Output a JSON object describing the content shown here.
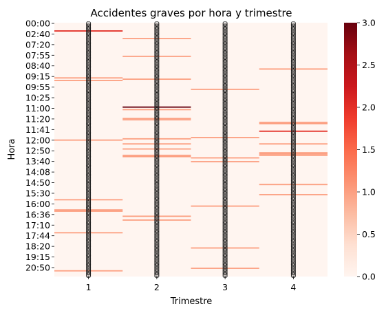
{
  "chart_data": {
    "type": "heatmap",
    "title": "Accidentes graves por hora y trimestre",
    "xlabel": "Trimestre",
    "ylabel": "Hora",
    "x_categories": [
      "1",
      "2",
      "3",
      "4"
    ],
    "y_tick_labels": [
      "00:00",
      "02:40",
      "07:20",
      "07:55",
      "08:40",
      "09:15",
      "09:55",
      "10:25",
      "11:00",
      "11:20",
      "11:41",
      "12:00",
      "12:50",
      "13:40",
      "14:08",
      "14:50",
      "15:30",
      "16:00",
      "16:36",
      "17:10",
      "17:44",
      "18:20",
      "19:15",
      "20:50"
    ],
    "value_range": [
      0,
      3
    ],
    "colorbar_ticks": [
      0.0,
      0.5,
      1.0,
      1.5,
      2.0,
      2.5,
      3.0
    ],
    "colormap": [
      "#fff5f0",
      "#fee0d2",
      "#fcbba1",
      "#fc9272",
      "#fb6a4a",
      "#ef3b2c",
      "#cb181d",
      "#a50f15",
      "#67000d"
    ],
    "row_count": 200,
    "cells": [
      {
        "trimestre": 1,
        "row": 6,
        "value": 2
      },
      {
        "trimestre": 1,
        "row": 43,
        "value": 1
      },
      {
        "trimestre": 1,
        "row": 45,
        "value": 1
      },
      {
        "trimestre": 1,
        "row": 92,
        "value": 1
      },
      {
        "trimestre": 1,
        "row": 139,
        "value": 1
      },
      {
        "trimestre": 1,
        "row": 147,
        "value": 1
      },
      {
        "trimestre": 1,
        "row": 148,
        "value": 1
      },
      {
        "trimestre": 1,
        "row": 165,
        "value": 1
      },
      {
        "trimestre": 1,
        "row": 195,
        "value": 1
      },
      {
        "trimestre": 2,
        "row": 12,
        "value": 1
      },
      {
        "trimestre": 2,
        "row": 26,
        "value": 1
      },
      {
        "trimestre": 2,
        "row": 44,
        "value": 1
      },
      {
        "trimestre": 2,
        "row": 66,
        "value": 3
      },
      {
        "trimestre": 2,
        "row": 68,
        "value": 1
      },
      {
        "trimestre": 2,
        "row": 75,
        "value": 1
      },
      {
        "trimestre": 2,
        "row": 76,
        "value": 1
      },
      {
        "trimestre": 2,
        "row": 91,
        "value": 1
      },
      {
        "trimestre": 2,
        "row": 95,
        "value": 1
      },
      {
        "trimestre": 2,
        "row": 99,
        "value": 1
      },
      {
        "trimestre": 2,
        "row": 104,
        "value": 1
      },
      {
        "trimestre": 2,
        "row": 105,
        "value": 1
      },
      {
        "trimestre": 2,
        "row": 152,
        "value": 1
      },
      {
        "trimestre": 2,
        "row": 155,
        "value": 1
      },
      {
        "trimestre": 3,
        "row": 52,
        "value": 1
      },
      {
        "trimestre": 3,
        "row": 90,
        "value": 1
      },
      {
        "trimestre": 3,
        "row": 106,
        "value": 1
      },
      {
        "trimestre": 3,
        "row": 109,
        "value": 1
      },
      {
        "trimestre": 3,
        "row": 144,
        "value": 1
      },
      {
        "trimestre": 3,
        "row": 177,
        "value": 1
      },
      {
        "trimestre": 3,
        "row": 193,
        "value": 1
      },
      {
        "trimestre": 4,
        "row": 36,
        "value": 1
      },
      {
        "trimestre": 4,
        "row": 78,
        "value": 1
      },
      {
        "trimestre": 4,
        "row": 79,
        "value": 1
      },
      {
        "trimestre": 4,
        "row": 85,
        "value": 2
      },
      {
        "trimestre": 4,
        "row": 95,
        "value": 1
      },
      {
        "trimestre": 4,
        "row": 102,
        "value": 1
      },
      {
        "trimestre": 4,
        "row": 103,
        "value": 1
      },
      {
        "trimestre": 4,
        "row": 104,
        "value": 1
      },
      {
        "trimestre": 4,
        "row": 127,
        "value": 1
      },
      {
        "trimestre": 4,
        "row": 135,
        "value": 1
      }
    ]
  }
}
